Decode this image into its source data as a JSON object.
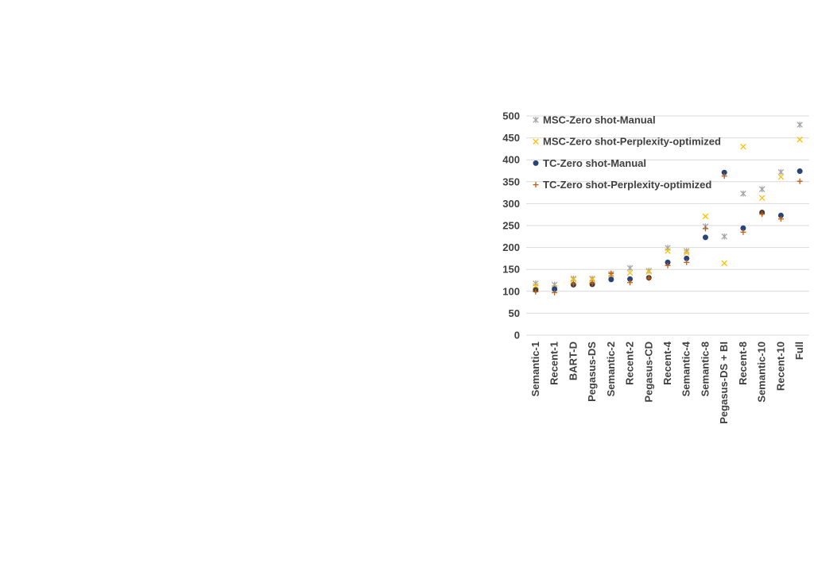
{
  "chart_data": {
    "type": "scatter",
    "categories": [
      "Semantic-1",
      "Recent-1",
      "BART-D",
      "Pegasus-DS",
      "Semantic-2",
      "Recent-2",
      "Pegasus-CD",
      "Recent-4",
      "Semantic-4",
      "Semantic-8",
      "Pegasus-DS + BI",
      "Recent-8",
      "Semantic-10",
      "Recent-10",
      "Full"
    ],
    "series": [
      {
        "name": "MSC-Zero shot-Manual",
        "marker": "star",
        "color": "#a5a5a5",
        "values": [
          118,
          115,
          129,
          129,
          140,
          153,
          147,
          199,
          192,
          248,
          225,
          323,
          333,
          372,
          480
        ]
      },
      {
        "name": "MSC-Zero shot-Perplexity-optimized",
        "marker": "x",
        "color": "#ffc000",
        "values": [
          112,
          108,
          127,
          127,
          137,
          142,
          145,
          192,
          188,
          271,
          164,
          430,
          313,
          361,
          446
        ]
      },
      {
        "name": "TC-Zero shot-Manual",
        "marker": "dot",
        "color": "#264478",
        "values": [
          103,
          105,
          115,
          116,
          127,
          128,
          131,
          166,
          175,
          223,
          371,
          244,
          280,
          273,
          374
        ]
      },
      {
        "name": "TC-Zero shot-Perplexity-optimized",
        "marker": "plus",
        "color": "#c55a11",
        "values": [
          99,
          97,
          117,
          119,
          141,
          120,
          130,
          159,
          166,
          243,
          363,
          235,
          276,
          265,
          351
        ]
      }
    ],
    "overlap_color": "#404040",
    "ylim": [
      0,
      500
    ],
    "yticks": [
      0,
      50,
      100,
      150,
      200,
      250,
      300,
      350,
      400,
      450,
      500
    ],
    "grid": true,
    "legend_position": "top-left"
  }
}
